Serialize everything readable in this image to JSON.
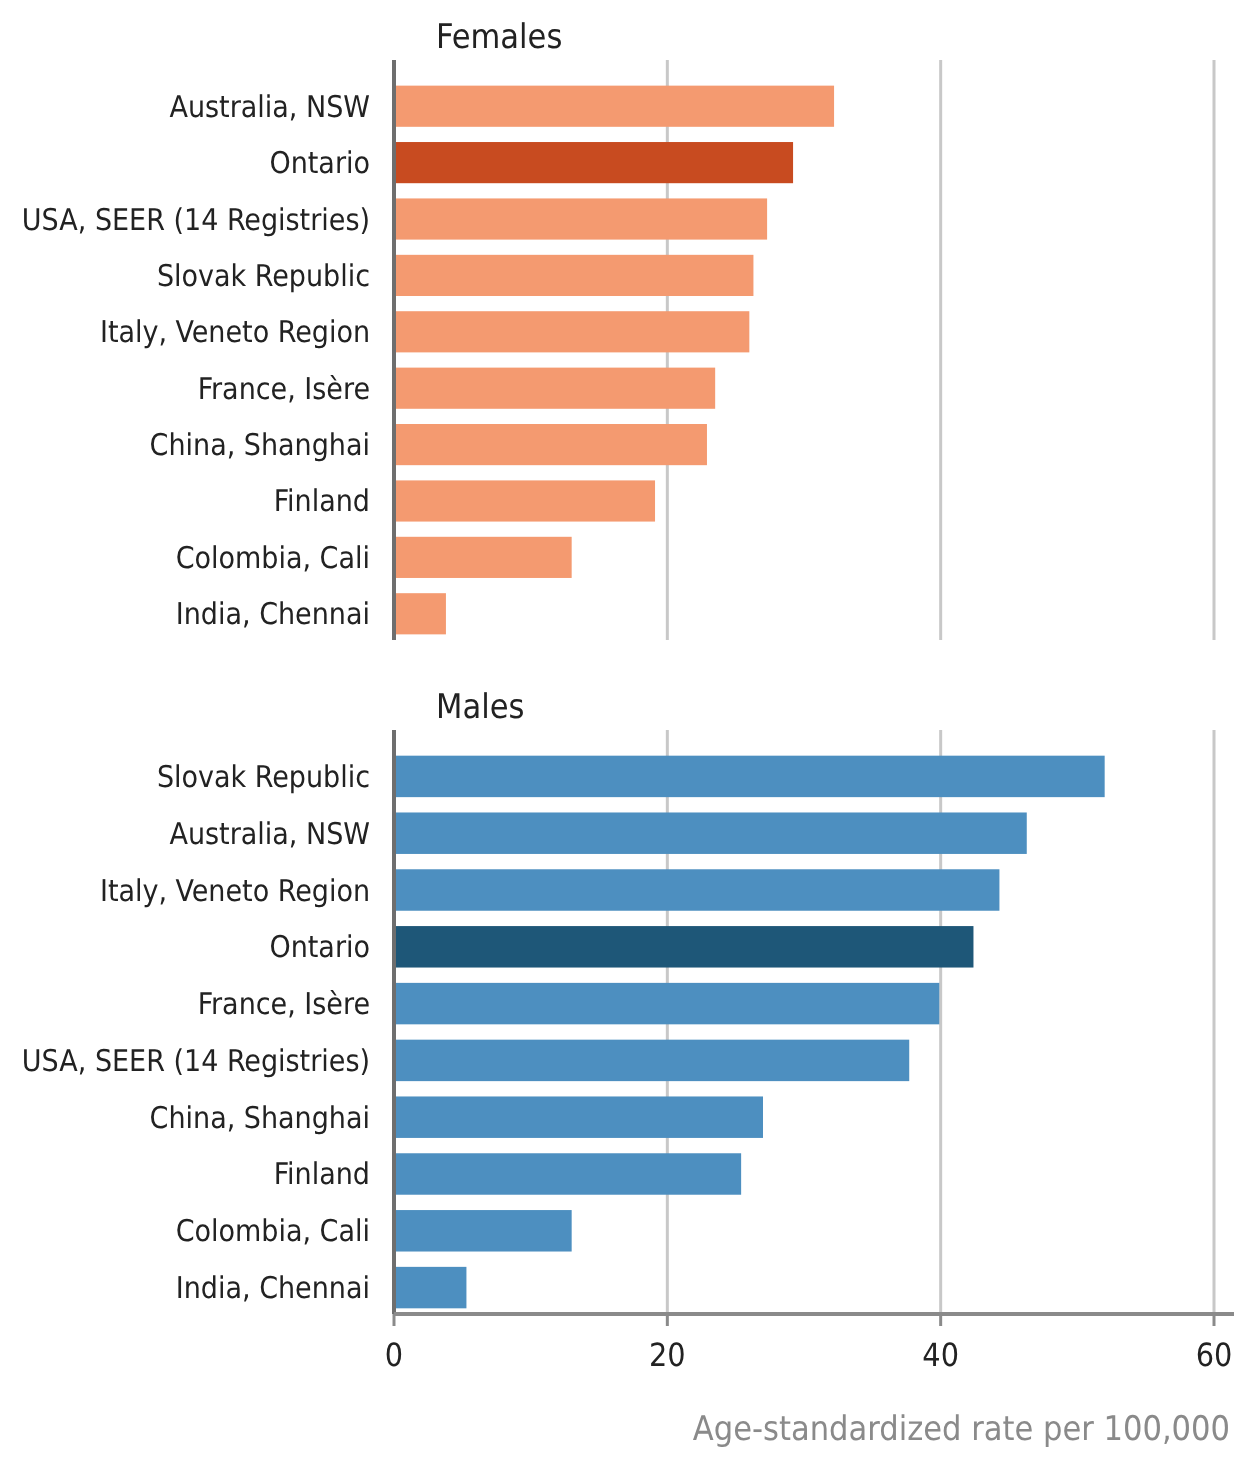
{
  "chart_data": [
    {
      "type": "bar",
      "orientation": "horizontal",
      "title": "Females",
      "categories": [
        "Australia, NSW",
        "Ontario",
        "USA, SEER (14  Registries)",
        "Slovak Republic",
        "Italy, Veneto Region",
        "France, Isère",
        "China, Shanghai",
        "Finland",
        "Colombia, Cali",
        "India, Chennai"
      ],
      "values": [
        32.2,
        29.2,
        27.3,
        26.3,
        26.0,
        23.5,
        22.9,
        19.1,
        13.0,
        3.8
      ],
      "colors": [
        "#f49a70",
        "#c84b20",
        "#f49a70",
        "#f49a70",
        "#f49a70",
        "#f49a70",
        "#f49a70",
        "#f49a70",
        "#f49a70",
        "#f49a70"
      ],
      "xlim": [
        0,
        60
      ],
      "xticks": [
        0,
        20,
        40,
        60
      ],
      "grid": "x",
      "tick_labels": "y"
    },
    {
      "type": "bar",
      "orientation": "horizontal",
      "title": "Males",
      "categories": [
        "Slovak Republic",
        "Australia, NSW",
        "Italy, Veneto Region",
        "Ontario",
        "France, Isère",
        "USA, SEER (14  Registries)",
        "China, Shanghai",
        "Finland",
        "Colombia, Cali",
        "India, Chennai"
      ],
      "values": [
        52.0,
        46.3,
        44.3,
        42.4,
        39.9,
        37.7,
        27.0,
        25.4,
        13.0,
        5.3
      ],
      "colors": [
        "#4d8fc0",
        "#4d8fc0",
        "#4d8fc0",
        "#1e5778",
        "#4d8fc0",
        "#4d8fc0",
        "#4d8fc0",
        "#4d8fc0",
        "#4d8fc0",
        "#4d8fc0"
      ],
      "xlim": [
        0,
        60
      ],
      "xticks": [
        0,
        20,
        40,
        60
      ],
      "grid": "x",
      "xlabel": "Age-standardized rate per 100,000"
    }
  ]
}
